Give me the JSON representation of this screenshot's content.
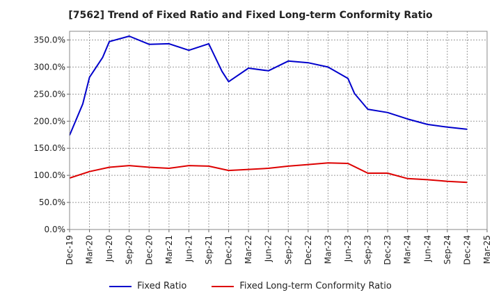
{
  "chart_data": {
    "type": "line",
    "title": "[7562]  Trend of Fixed Ratio and Fixed Long-term Conformity Ratio",
    "x_tick_labels": [
      "Dec-19",
      "Mar-20",
      "Jun-20",
      "Sep-20",
      "Dec-20",
      "Mar-21",
      "Jun-21",
      "Sep-21",
      "Dec-21",
      "Mar-22",
      "Jun-22",
      "Sep-22",
      "Dec-22",
      "Mar-23",
      "Jun-23",
      "Sep-23",
      "Dec-23",
      "Mar-24",
      "Jun-24",
      "Sep-24",
      "Dec-24",
      "Mar-25"
    ],
    "y_tick_labels": [
      "0.0%",
      "50.0%",
      "100.0%",
      "150.0%",
      "200.0%",
      "250.0%",
      "300.0%",
      "350.0%"
    ],
    "ylim": [
      0,
      366
    ],
    "grid": true,
    "legend_position": "bottom",
    "series": [
      {
        "name": "Fixed Ratio",
        "color": "#0000cc",
        "x": [
          "Dec-19",
          "Feb-20",
          "Mar-20",
          "May-20",
          "Jun-20",
          "Sep-20",
          "Dec-20",
          "Mar-21",
          "Jun-21",
          "Sep-21",
          "Nov-21",
          "Dec-21",
          "Mar-22",
          "Jun-22",
          "Sep-22",
          "Dec-22",
          "Mar-23",
          "Jun-23",
          "Jul-23",
          "Sep-23",
          "Dec-23",
          "Mar-24",
          "Jun-24",
          "Sep-24",
          "Dec-24"
        ],
        "values": [
          174,
          232,
          281,
          318,
          347,
          357,
          342,
          343,
          331,
          343,
          292,
          273,
          298,
          293,
          311,
          308,
          300,
          279,
          251,
          222,
          216,
          204,
          194,
          189,
          185
        ]
      },
      {
        "name": "Fixed Long-term Conformity Ratio",
        "color": "#dd0000",
        "x": [
          "Dec-19",
          "Mar-20",
          "Jun-20",
          "Sep-20",
          "Dec-20",
          "Mar-21",
          "Jun-21",
          "Sep-21",
          "Dec-21",
          "Mar-22",
          "Jun-22",
          "Sep-22",
          "Dec-22",
          "Mar-23",
          "Jun-23",
          "Sep-23",
          "Dec-23",
          "Mar-24",
          "Jun-24",
          "Sep-24",
          "Dec-24"
        ],
        "values": [
          95,
          107,
          115,
          118,
          115,
          113,
          118,
          117,
          109,
          111,
          113,
          117,
          120,
          123,
          122,
          104,
          104,
          94,
          92,
          89,
          87
        ]
      }
    ]
  }
}
